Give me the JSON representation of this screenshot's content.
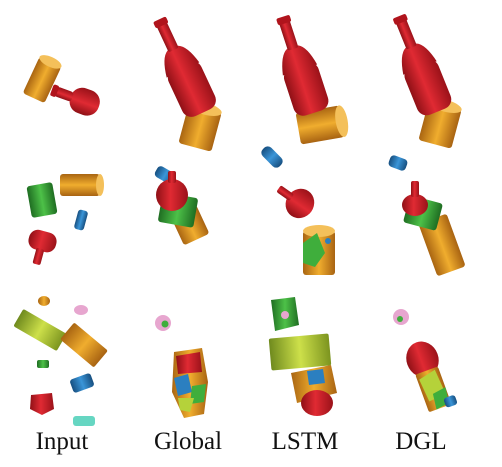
{
  "columns": [
    {
      "label": "Input"
    },
    {
      "label": "Global"
    },
    {
      "label": "LSTM"
    },
    {
      "label": "DGL"
    }
  ],
  "colors": {
    "red": "#d4202a",
    "red_dark": "#8f1016",
    "orange": "#e39a22",
    "orange_dark": "#a96512",
    "green": "#3fae3c",
    "green_dark": "#1f6d22",
    "blue": "#2b7fc0",
    "blue_dark": "#174f80",
    "yellow_green": "#b5d23a",
    "pink": "#e7a6cf",
    "teal": "#66d6c2"
  }
}
